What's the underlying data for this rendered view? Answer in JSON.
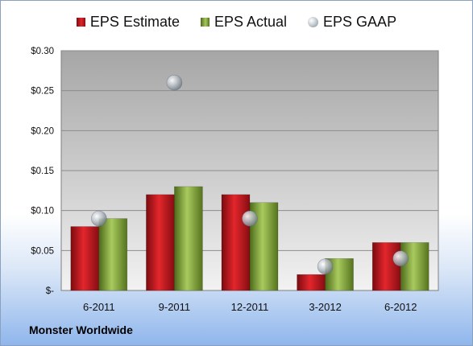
{
  "company": "Monster Worldwide",
  "chart_data": {
    "type": "bar",
    "categories": [
      "6-2011",
      "9-2011",
      "12-2011",
      "3-2012",
      "6-2012"
    ],
    "series": [
      {
        "name": "EPS Estimate",
        "kind": "bar",
        "color": "#c8171d",
        "values": [
          0.08,
          0.12,
          0.12,
          0.02,
          0.06
        ]
      },
      {
        "name": "EPS Actual",
        "kind": "bar",
        "color": "#8db33f",
        "values": [
          0.09,
          0.13,
          0.11,
          0.04,
          0.06
        ]
      },
      {
        "name": "EPS GAAP",
        "kind": "scatter",
        "color": "#a9b1ba",
        "values": [
          0.09,
          0.26,
          0.09,
          0.03,
          0.04
        ]
      }
    ],
    "yticks": [
      "$-",
      "$0.05",
      "$0.10",
      "$0.15",
      "$0.20",
      "$0.25",
      "$0.30"
    ],
    "ylim": [
      0,
      0.3
    ],
    "grid": true,
    "legend_position": "top"
  }
}
